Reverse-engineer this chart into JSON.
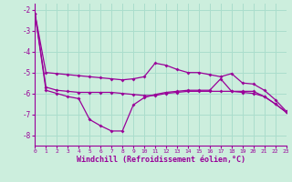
{
  "xlabel": "Windchill (Refroidissement éolien,°C)",
  "background_color": "#cceedd",
  "grid_color": "#aaddcc",
  "line_color": "#990099",
  "x_values": [
    0,
    1,
    2,
    3,
    4,
    5,
    6,
    7,
    8,
    9,
    10,
    11,
    12,
    13,
    14,
    15,
    16,
    17,
    18,
    19,
    20,
    21,
    22,
    23
  ],
  "line1_y": [
    -2.2,
    -5.0,
    -5.05,
    -5.1,
    -5.15,
    -5.2,
    -5.25,
    -5.3,
    -5.35,
    -5.3,
    -5.2,
    -4.55,
    -4.65,
    -4.85,
    -5.0,
    -5.0,
    -5.1,
    -5.2,
    -5.05,
    -5.5,
    -5.55,
    -5.85,
    -6.3,
    -6.85
  ],
  "line2_y": [
    -2.2,
    -5.7,
    -5.85,
    -5.9,
    -5.95,
    -5.95,
    -5.95,
    -5.95,
    -6.0,
    -6.05,
    -6.1,
    -6.1,
    -6.0,
    -5.95,
    -5.9,
    -5.9,
    -5.9,
    -5.9,
    -5.9,
    -5.95,
    -6.0,
    -6.15,
    -6.5,
    -6.9
  ],
  "line3_y": [
    -2.2,
    -5.85,
    -6.0,
    -6.15,
    -6.25,
    -7.25,
    -7.55,
    -7.8,
    -7.8,
    -6.55,
    -6.2,
    -6.05,
    -5.95,
    -5.9,
    -5.85,
    -5.85,
    -5.85,
    -5.3,
    -5.9,
    -5.9,
    -5.9,
    -6.15,
    -6.5,
    -6.9
  ],
  "ylim": [
    -8.5,
    -1.7
  ],
  "xlim": [
    0,
    23
  ],
  "yticks": [
    -2,
    -3,
    -4,
    -5,
    -6,
    -7,
    -8
  ],
  "xticks": [
    0,
    1,
    2,
    3,
    4,
    5,
    6,
    7,
    8,
    9,
    10,
    11,
    12,
    13,
    14,
    15,
    16,
    17,
    18,
    19,
    20,
    21,
    22,
    23
  ]
}
